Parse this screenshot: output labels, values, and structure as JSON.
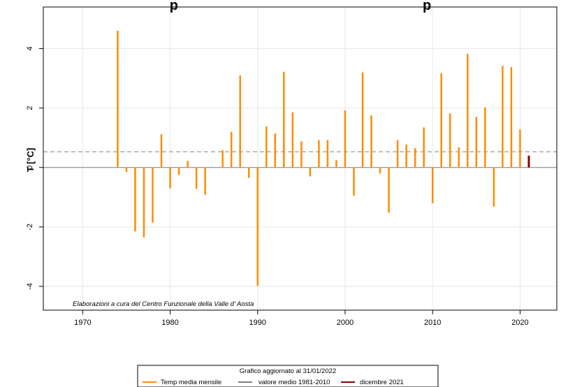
{
  "chart_data": {
    "type": "bar",
    "title": "",
    "ylabel": "T [°C]",
    "xlabel": "",
    "xlim": [
      1965.5,
      2024.2
    ],
    "ylim": [
      -4.8,
      5.4
    ],
    "xticks": [
      "1970",
      "1980",
      "1990",
      "2000",
      "2010",
      "2020"
    ],
    "yticks": [
      "4",
      "2",
      "0",
      "-2",
      "-4"
    ],
    "grid": true,
    "annotation": "Elaborazioni a cura del Centro Funzionale della Valle d' Aosta",
    "reference_line": {
      "name": "valore medio 1981-2010",
      "value": 0.53
    },
    "colors": {
      "series": "#ff8c00",
      "highlight": "#8b0000",
      "reference": "#808080",
      "zero": "#808080"
    },
    "x": [
      1974,
      1975,
      1976,
      1977,
      1978,
      1979,
      1980,
      1981,
      1982,
      1983,
      1984,
      1985,
      1986,
      1987,
      1988,
      1989,
      1990,
      1991,
      1992,
      1993,
      1994,
      1995,
      1996,
      1997,
      1998,
      1999,
      2000,
      2001,
      2002,
      2003,
      2004,
      2005,
      2006,
      2007,
      2008,
      2009,
      2010,
      2011,
      2012,
      2013,
      2014,
      2015,
      2016,
      2017,
      2018,
      2019,
      2020,
      2021
    ],
    "series": [
      {
        "name": "Temp media mensile",
        "values": [
          4.6,
          -0.15,
          -2.15,
          -2.35,
          -1.85,
          1.12,
          -0.7,
          -0.25,
          0.22,
          -0.72,
          -0.92,
          0.0,
          0.58,
          1.2,
          3.1,
          -0.35,
          -3.98,
          1.38,
          1.15,
          3.22,
          1.85,
          0.88,
          -0.3,
          0.92,
          0.92,
          0.25,
          1.92,
          -0.95,
          3.2,
          1.75,
          -0.2,
          -1.52,
          0.92,
          0.77,
          0.65,
          1.35,
          -1.2,
          3.17,
          1.82,
          0.68,
          3.82,
          1.7,
          2.02,
          -1.32,
          3.42,
          3.38,
          1.28,
          null
        ]
      },
      {
        "name": "dicembre 2021",
        "values": [
          null,
          null,
          null,
          null,
          null,
          null,
          null,
          null,
          null,
          null,
          null,
          null,
          null,
          null,
          null,
          null,
          null,
          null,
          null,
          null,
          null,
          null,
          null,
          null,
          null,
          null,
          null,
          null,
          null,
          null,
          null,
          null,
          null,
          null,
          null,
          null,
          null,
          null,
          null,
          null,
          null,
          null,
          null,
          null,
          null,
          null,
          null,
          0.4
        ]
      }
    ]
  },
  "legend": {
    "header": "Grafico aggiornato al 31/01/2022",
    "items": [
      {
        "label": "Temp media mensile",
        "color": "#ff8c00"
      },
      {
        "label": "valore medio 1981-2010",
        "color": "#808080"
      },
      {
        "label": "dicembre 2021",
        "color": "#8b0000"
      }
    ]
  },
  "title_overlay": "p                                                               p"
}
